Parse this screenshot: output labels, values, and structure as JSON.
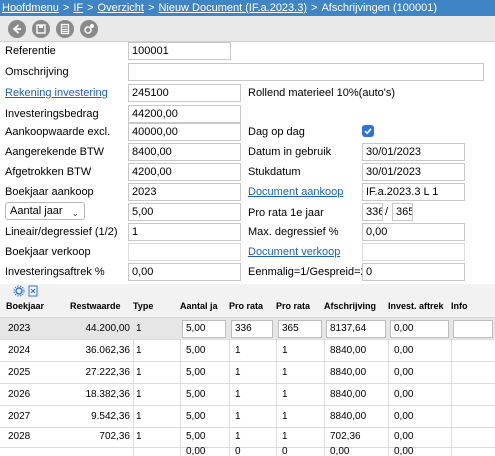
{
  "breadcrumb": {
    "items": [
      "Hoofdmenu",
      "IF",
      "Overzicht",
      "Nieuw Document (IF.a.2023.3)"
    ],
    "separator": ">",
    "current": "Afschrijvingen (100001)"
  },
  "toolbar": {
    "buttons": [
      "back-icon",
      "save-icon",
      "calculator-icon",
      "settings-icon"
    ]
  },
  "form": {
    "referentie": {
      "label": "Referentie",
      "value": "100001"
    },
    "omschrijving": {
      "label": "Omschrijving",
      "value": ""
    },
    "rekening_investering": {
      "label": "Rekening investering",
      "value": "245100",
      "description": "Rollend materieel 10%(auto's)"
    },
    "investeringsbedrag": {
      "label": "Investeringsbedrag",
      "value": "44200,00"
    },
    "aankoopwaarde": {
      "label": "Aankoopwaarde excl.",
      "value": "40000,00"
    },
    "dag_op_dag": {
      "label": "Dag op dag",
      "checked": true
    },
    "aangerekende_btw": {
      "label": "Aangerekende BTW",
      "value": "8400,00"
    },
    "datum_in_gebruik": {
      "label": "Datum in gebruik",
      "value": "30/01/2023"
    },
    "afgetrokken_btw": {
      "label": "Afgetrokken BTW",
      "value": "4200,00"
    },
    "stukdatum": {
      "label": "Stukdatum",
      "value": "30/01/2023"
    },
    "boekjaar_aankoop": {
      "label": "Boekjaar aankoop",
      "value": "2023"
    },
    "document_aankoop": {
      "label": "Document aankoop",
      "value": "IF.a.2023.3 L 1"
    },
    "aantal_jaar": {
      "select": "Aantal jaar",
      "value": "5,00"
    },
    "pro_rata": {
      "label": "Pro rata 1e jaar",
      "numerator": "336",
      "separator": "/",
      "denominator": "365"
    },
    "lineair": {
      "label": "Lineair/degressief (1/2)",
      "value": "1"
    },
    "max_degressief": {
      "label": "Max. degressief %",
      "value": "0,00"
    },
    "boekjaar_verkoop": {
      "label": "Boekjaar verkoop",
      "value": ""
    },
    "document_verkoop": {
      "label": "Document verkoop",
      "value": ""
    },
    "investeringsaftrek": {
      "label": "Investeringsaftrek %",
      "value": "0,00"
    },
    "eenmalig": {
      "label": "Eenmalig=1/Gespreid=2",
      "value": "0"
    }
  },
  "grid": {
    "tools": [
      "settings-icon",
      "export-excel-icon"
    ],
    "columns": [
      "Boekjaar",
      "Restwaarde",
      "Type",
      "Aantal jaar",
      "Pro rata",
      "Pro rata",
      "Afschrijving",
      "Invest. aftrek",
      "Info"
    ],
    "rows": [
      [
        "2023",
        "44.200,00",
        "1",
        "5,00",
        "336",
        "365",
        "8137,64",
        "0,00",
        ""
      ],
      [
        "2024",
        "36.062,36",
        "1",
        "5,00",
        "1",
        "1",
        "8840,00",
        "0,00",
        ""
      ],
      [
        "2025",
        "27.222,36",
        "1",
        "5,00",
        "1",
        "1",
        "8840,00",
        "0,00",
        ""
      ],
      [
        "2026",
        "18.382,36",
        "1",
        "5,00",
        "1",
        "1",
        "8840,00",
        "0,00",
        ""
      ],
      [
        "2027",
        "9.542,36",
        "1",
        "5,00",
        "1",
        "1",
        "8840,00",
        "0,00",
        ""
      ],
      [
        "2028",
        "702,36",
        "1",
        "5,00",
        "1",
        "1",
        "702,36",
        "0,00",
        ""
      ],
      [
        "",
        "",
        "",
        "0,00",
        "0",
        "0",
        "0,00",
        "0,00",
        ""
      ]
    ]
  },
  "colors": {
    "titlebar": "#3f84c4",
    "link": "#1f5fbf",
    "checkbox": "#2f73d6"
  }
}
